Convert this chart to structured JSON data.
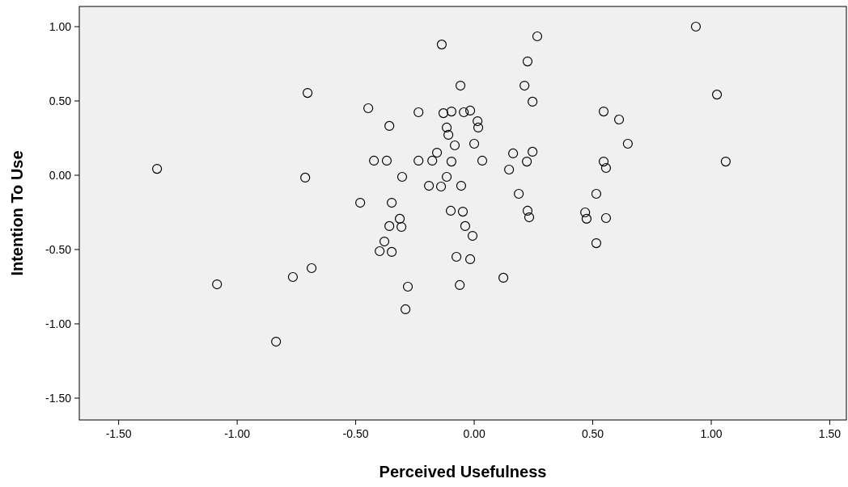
{
  "chart_data": {
    "type": "scatter",
    "xlabel": "Perceived Usefulness",
    "ylabel": "Intention To Use",
    "xlim": [
      -1.666,
      1.57
    ],
    "ylim": [
      -1.647,
      1.136
    ],
    "xticks": [
      {
        "value": -1.5,
        "label": "-1.50"
      },
      {
        "value": -1,
        "label": "-1.00"
      },
      {
        "value": -0.5,
        "label": "-0.50"
      },
      {
        "value": 0,
        "label": "0.00"
      },
      {
        "value": 0.5,
        "label": "0.50"
      },
      {
        "value": 1,
        "label": "1.00"
      },
      {
        "value": 1.5,
        "label": "1.50"
      }
    ],
    "yticks": [
      {
        "value": -1.5,
        "label": "-1.50"
      },
      {
        "value": -1,
        "label": "-1.00"
      },
      {
        "value": -0.5,
        "label": "-0.50"
      },
      {
        "value": 0,
        "label": "0.00"
      },
      {
        "value": 0.5,
        "label": "0.50"
      },
      {
        "value": 1,
        "label": "1.00"
      }
    ],
    "grid": false,
    "marker": "circle",
    "series": [
      {
        "color": "#000000",
        "x": [
          -1.338,
          -1.085,
          -0.836,
          -0.765,
          -0.703,
          -0.686,
          -0.713,
          -0.481,
          -0.447,
          -0.423,
          -0.399,
          -0.379,
          -0.369,
          -0.358,
          -0.358,
          -0.348,
          -0.348,
          -0.314,
          -0.307,
          -0.304,
          -0.28,
          -0.29,
          -0.235,
          -0.235,
          -0.191,
          -0.177,
          -0.157,
          -0.14,
          -0.137,
          -0.13,
          -0.116,
          -0.109,
          -0.116,
          -0.099,
          -0.096,
          -0.096,
          -0.082,
          -0.075,
          -0.061,
          -0.058,
          -0.055,
          -0.048,
          -0.044,
          -0.038,
          -0.017,
          -0.017,
          -0.007,
          0.014,
          0.017,
          0.0,
          0.034,
          0.123,
          0.147,
          0.164,
          0.188,
          0.212,
          0.225,
          0.222,
          0.225,
          0.232,
          0.246,
          0.246,
          0.266,
          0.468,
          0.474,
          0.515,
          0.515,
          0.546,
          0.546,
          0.556,
          0.556,
          0.611,
          0.648,
          0.935,
          1.024,
          1.061
        ],
        "values": [
          0.043,
          -0.734,
          -1.12,
          -0.685,
          0.554,
          -0.625,
          -0.016,
          -0.185,
          0.451,
          0.098,
          -0.511,
          -0.446,
          0.098,
          -0.342,
          0.332,
          -0.185,
          -0.516,
          -0.293,
          -0.348,
          -0.011,
          -0.75,
          -0.902,
          0.424,
          0.098,
          -0.071,
          0.098,
          0.152,
          -0.076,
          0.88,
          0.418,
          0.321,
          0.272,
          -0.011,
          -0.239,
          0.092,
          0.429,
          0.201,
          -0.549,
          -0.739,
          0.603,
          -0.071,
          -0.245,
          0.424,
          -0.342,
          0.435,
          -0.565,
          -0.408,
          0.364,
          0.321,
          0.212,
          0.098,
          -0.69,
          0.038,
          0.147,
          -0.125,
          0.603,
          0.766,
          0.092,
          -0.239,
          -0.283,
          0.158,
          0.495,
          0.935,
          -0.25,
          -0.293,
          -0.125,
          -0.457,
          0.429,
          0.092,
          0.049,
          -0.288,
          0.375,
          0.212,
          1.0,
          0.543,
          0.092
        ]
      }
    ]
  }
}
